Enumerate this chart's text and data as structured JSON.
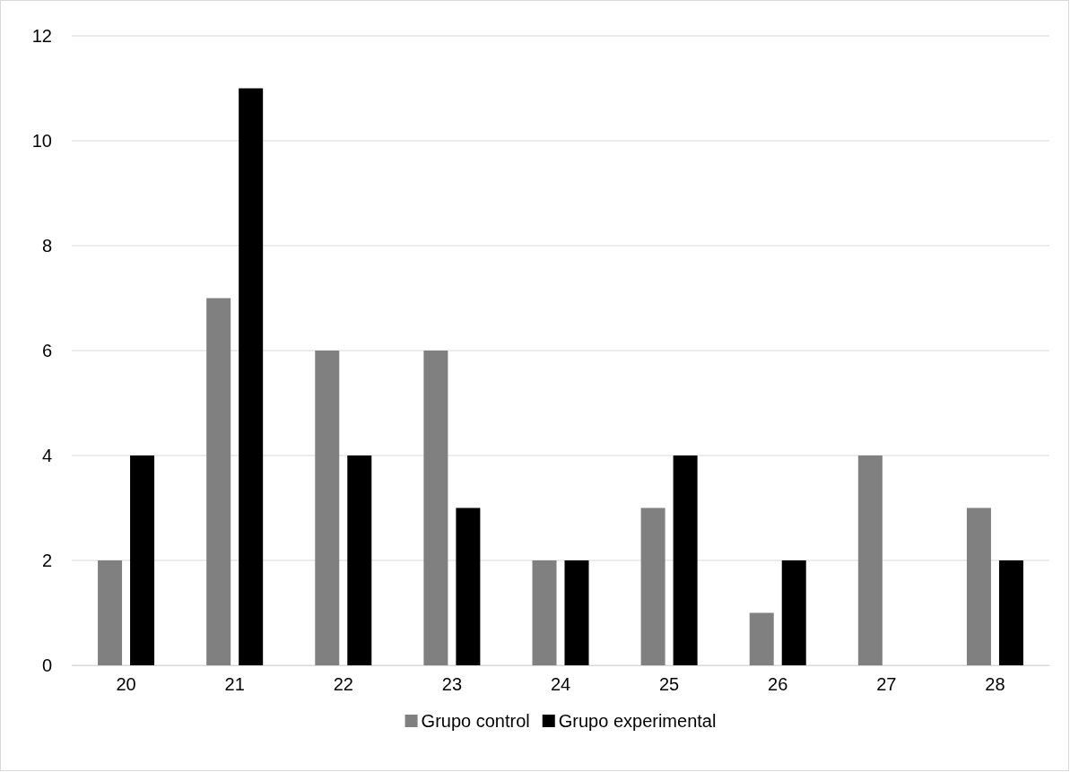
{
  "chart_data": {
    "type": "bar",
    "categories": [
      "20",
      "21",
      "22",
      "23",
      "24",
      "25",
      "26",
      "27",
      "28"
    ],
    "series": [
      {
        "name": "Grupo control",
        "color": "#808080",
        "values": [
          2,
          7,
          6,
          6,
          2,
          3,
          1,
          4,
          3
        ]
      },
      {
        "name": "Grupo experimental",
        "color": "#000000",
        "values": [
          4,
          11,
          4,
          3,
          2,
          4,
          2,
          0,
          2
        ]
      }
    ],
    "ylim": [
      0,
      12
    ],
    "yticks": [
      0,
      2,
      4,
      6,
      8,
      10,
      12
    ],
    "grid": "y",
    "legend": "bottom"
  }
}
